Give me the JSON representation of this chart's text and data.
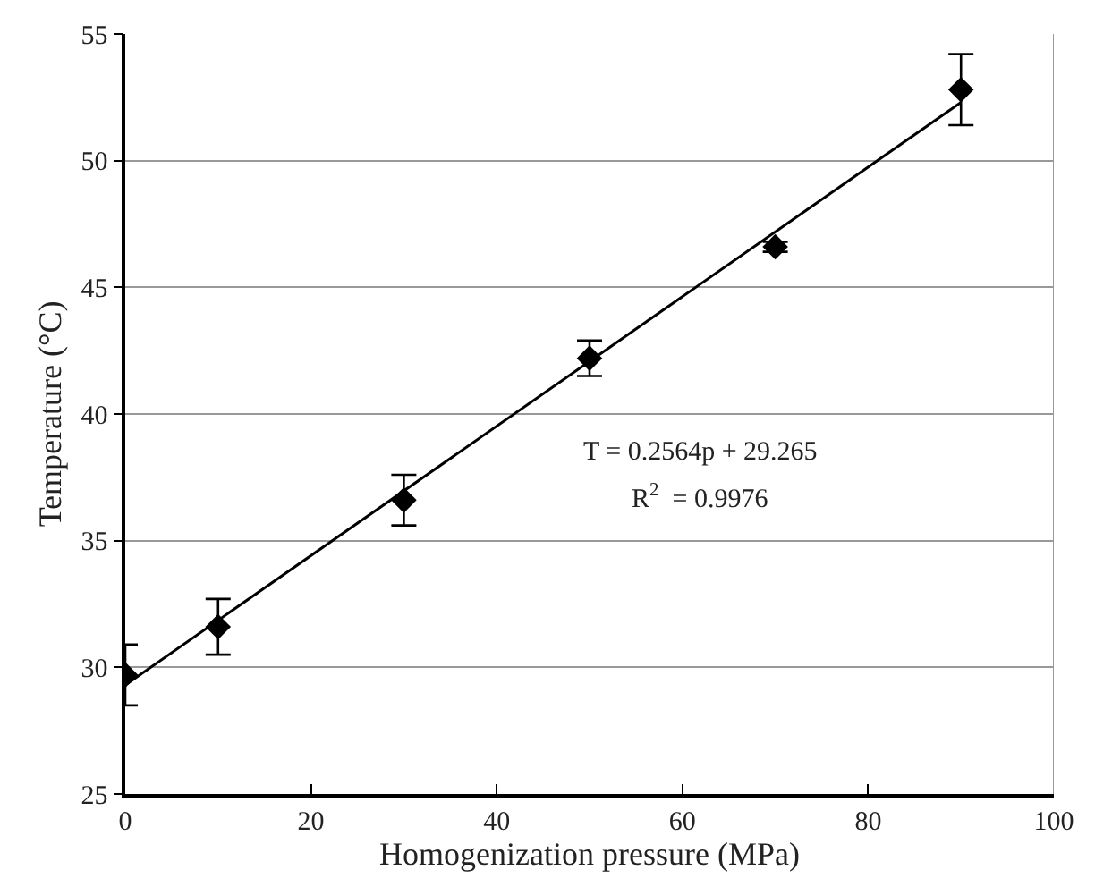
{
  "chart_data": {
    "type": "scatter",
    "xlabel": "Homogenization pressure (MPa)",
    "ylabel": "Temperature (°C)",
    "x": [
      0,
      10,
      30,
      50,
      70,
      90
    ],
    "series": [
      {
        "color": "#000000",
        "marker": "diamond",
        "values": [
          29.7,
          31.6,
          36.6,
          42.2,
          46.6,
          52.8
        ],
        "errors": [
          1.2,
          1.1,
          1.0,
          0.7,
          0.2,
          1.4
        ]
      },
      {
        "type": "line",
        "color": "#000000",
        "x": [
          0,
          90
        ],
        "values": [
          29.3,
          52.3
        ],
        "line_style": "solid"
      }
    ],
    "xlim": [
      0,
      100
    ],
    "xticks": [
      0,
      20,
      40,
      60,
      80,
      100
    ],
    "ylim": [
      25,
      55
    ],
    "yticks": [
      25,
      30,
      35,
      40,
      45,
      50,
      55
    ],
    "grid": "y",
    "annotations": [
      "T = 0.2564p + 29.265",
      "R$^{2}$  = 0.9976"
    ]
  }
}
